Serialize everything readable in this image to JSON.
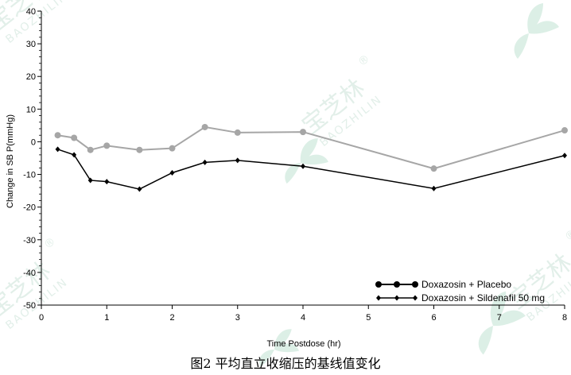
{
  "watermark": {
    "logo_text": "宝芝林",
    "sub_text": "BAOZHILIN",
    "reg_mark": "®",
    "colors": {
      "leaf": "#dcefe6",
      "text": "#e2efe9"
    }
  },
  "caption": "图2 平均直立收缩压的基线值变化",
  "chart_data": {
    "type": "line",
    "xlabel": "Time Postdose (hr)",
    "ylabel": "Change in SB P(mmHg)",
    "xlim": [
      0,
      8
    ],
    "ylim": [
      -50,
      40
    ],
    "x_ticks": [
      0,
      1,
      2,
      3,
      4,
      5,
      6,
      7,
      8
    ],
    "y_ticks": [
      40,
      30,
      20,
      10,
      0,
      -10,
      -20,
      -30,
      -40,
      -50
    ],
    "y_minor_step": 2,
    "grid": false,
    "legend_position": "bottom-right",
    "series": [
      {
        "name": "Doxazosin + Placebo",
        "color": "#a6a6a6",
        "legend_color": "#000000",
        "marker": "circle",
        "x": [
          0.25,
          0.5,
          0.75,
          1,
          1.5,
          2,
          2.5,
          3,
          4,
          6,
          8
        ],
        "y": [
          2.0,
          1.2,
          -2.5,
          -1.2,
          -2.5,
          -2.0,
          4.5,
          2.8,
          3.0,
          -8.2,
          3.5
        ]
      },
      {
        "name": "Doxazosin + Sildenafil 50 mg",
        "color": "#000000",
        "legend_color": "#000000",
        "marker": "diamond",
        "x": [
          0.25,
          0.5,
          0.75,
          1,
          1.5,
          2,
          2.5,
          3,
          4,
          6,
          8
        ],
        "y": [
          -2.3,
          -4.0,
          -11.8,
          -12.2,
          -14.5,
          -9.5,
          -6.3,
          -5.7,
          -7.5,
          -14.3,
          -4.2
        ]
      }
    ]
  }
}
